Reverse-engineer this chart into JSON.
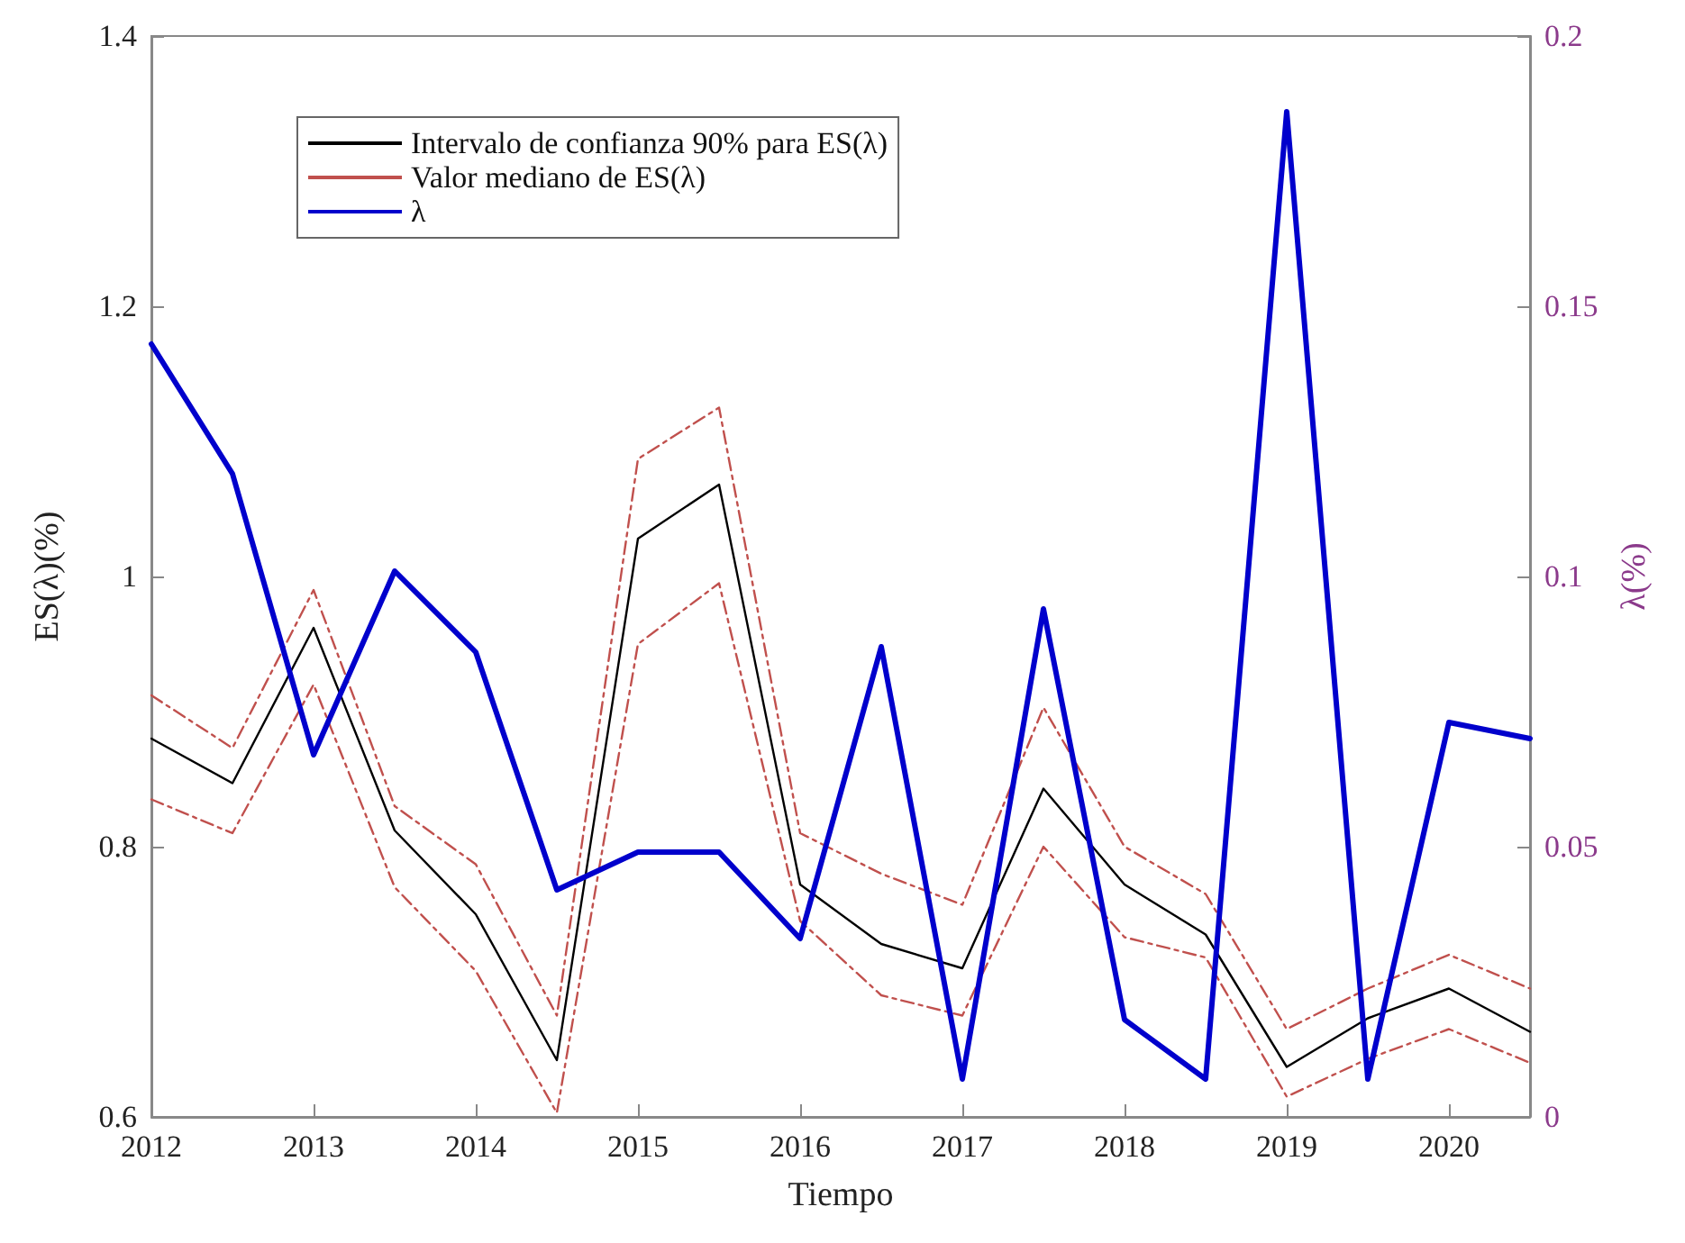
{
  "chart_data": {
    "type": "line",
    "xlabel": "Tiempo",
    "ylabel": "ES(λ)(%)",
    "y2label": "λ(%)",
    "x": [
      2012,
      2012.5,
      2013,
      2013.5,
      2014,
      2014.5,
      2015,
      2015.5,
      2016,
      2016.5,
      2017,
      2017.5,
      2018,
      2018.5,
      2019,
      2019.5,
      2020,
      2020.5
    ],
    "series": [
      {
        "name": "Intervalo de confianza 90% para ES(λ)",
        "color": "#000000",
        "line_style": "solid",
        "values": [
          0.88,
          0.847,
          0.962,
          0.812,
          0.75,
          0.642,
          1.028,
          1.068,
          0.772,
          0.728,
          0.71,
          0.843,
          0.772,
          0.735,
          0.637,
          0.673,
          0.695,
          0.663
        ]
      },
      {
        "name": "Valor mediano de ES(λ)",
        "color": "#c0504d",
        "line_style": "dashed",
        "values": [
          0.912,
          0.873,
          0.99,
          0.83,
          0.787,
          0.675,
          1.087,
          1.125,
          0.81,
          0.78,
          0.757,
          0.903,
          0.8,
          0.765,
          0.665,
          0.695,
          0.72,
          0.695
        ]
      },
      {
        "color": "#c0504d",
        "line_style": "dashed",
        "values": [
          0.835,
          0.81,
          0.92,
          0.77,
          0.708,
          0.603,
          0.95,
          0.995,
          0.745,
          0.69,
          0.675,
          0.8,
          0.733,
          0.718,
          0.615,
          0.643,
          0.665,
          0.64
        ]
      },
      {
        "name": "λ",
        "color": "#0000cc",
        "line_style": "solid",
        "axis": "y2",
        "values": [
          0.143,
          0.119,
          0.067,
          0.101,
          0.086,
          0.042,
          0.049,
          0.049,
          0.033,
          0.087,
          0.007,
          0.094,
          0.018,
          0.007,
          0.186,
          0.007,
          0.073,
          0.07
        ]
      }
    ],
    "xlim": [
      2012,
      2020.5
    ],
    "xticks": [
      2012,
      2013,
      2014,
      2015,
      2016,
      2017,
      2018,
      2019,
      2020
    ],
    "ylim": [
      0.6,
      1.4
    ],
    "yticks": [
      0.6,
      0.8,
      1,
      1.2,
      1.4
    ],
    "y2lim": [
      0,
      0.2
    ],
    "y2ticks": [
      0,
      0.05,
      0.1,
      0.15,
      0.2
    ],
    "grid": false,
    "legend": "top left",
    "marker": "none"
  }
}
